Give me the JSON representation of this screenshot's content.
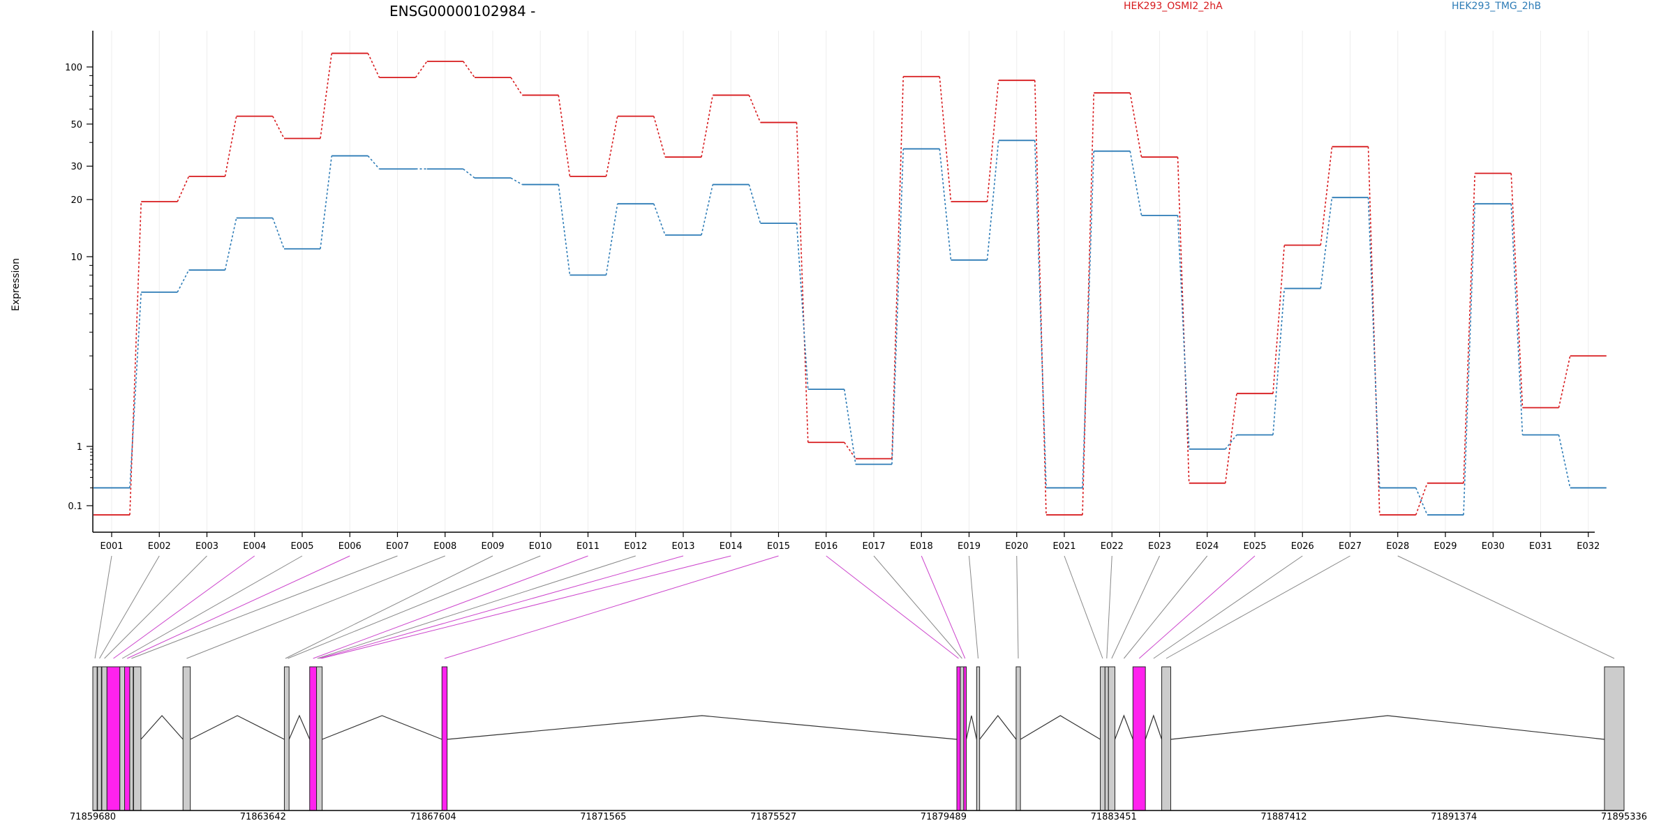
{
  "chart_data": {
    "type": "line",
    "title": "ENSG00000102984 -",
    "ylabel": "Expression",
    "yscale": "log",
    "yticks": [
      0.1,
      1,
      10,
      20,
      30,
      50,
      100
    ],
    "ytick_labels": [
      "0.1",
      "1",
      "10",
      "20",
      "30",
      "50",
      "100"
    ],
    "categories": [
      "E001",
      "E002",
      "E003",
      "E004",
      "E005",
      "E006",
      "E007",
      "E008",
      "E009",
      "E010",
      "E011",
      "E012",
      "E013",
      "E014",
      "E015",
      "E016",
      "E017",
      "E018",
      "E019",
      "E020",
      "E021",
      "E022",
      "E023",
      "E024",
      "E025",
      "E026",
      "E027",
      "E028",
      "E029",
      "E030",
      "E031",
      "E032"
    ],
    "series": [
      {
        "name": "HEK293_OSMI2_2hA",
        "color": "#d7191c",
        "values": [
          0.07,
          19.5,
          26.5,
          55,
          42,
          118,
          88,
          107,
          88,
          71,
          26.5,
          55,
          33.5,
          71,
          51,
          1.05,
          0.62,
          89,
          19.5,
          85,
          0.07,
          73,
          33.5,
          0.24,
          1.9,
          11.5,
          38,
          0.07,
          0.24,
          27.5,
          1.6,
          3.0
        ]
      },
      {
        "name": "HEK293_TMG_2hB",
        "color": "#2c7bb6",
        "values": [
          0.2,
          6.5,
          8.5,
          16,
          11,
          34,
          29,
          29,
          26,
          24,
          8,
          19,
          13,
          24,
          15,
          2.0,
          0.5,
          37,
          9.6,
          41,
          0.2,
          36,
          16.5,
          0.9,
          1.15,
          6.8,
          20.5,
          0.2,
          0.07,
          19,
          1.15,
          0.2
        ]
      }
    ],
    "grid": true,
    "legend_placement": "top",
    "gene_model": {
      "coordinate_ticks": [
        "71859680",
        "71863642",
        "71867604",
        "71871565",
        "71875527",
        "71879489",
        "71883451",
        "71887412",
        "71891374",
        "71895336"
      ],
      "range": [
        71859680,
        71895336
      ],
      "exons": [
        {
          "start": 71859680,
          "end": 71859780,
          "highlight": false
        },
        {
          "start": 71859790,
          "end": 71859880,
          "highlight": false
        },
        {
          "start": 71859890,
          "end": 71860010,
          "highlight": false
        },
        {
          "start": 71860010,
          "end": 71860310,
          "highlight": true
        },
        {
          "start": 71860310,
          "end": 71860420,
          "highlight": false
        },
        {
          "start": 71860420,
          "end": 71860540,
          "highlight": true
        },
        {
          "start": 71860540,
          "end": 71860620,
          "highlight": false
        },
        {
          "start": 71860630,
          "end": 71860800,
          "highlight": false
        },
        {
          "start": 71861780,
          "end": 71861950,
          "highlight": false
        },
        {
          "start": 71864140,
          "end": 71864250,
          "highlight": false
        },
        {
          "start": 71864730,
          "end": 71864890,
          "highlight": true
        },
        {
          "start": 71864890,
          "end": 71865020,
          "highlight": false
        },
        {
          "start": 71867810,
          "end": 71867930,
          "highlight": true
        },
        {
          "start": 71879800,
          "end": 71879880,
          "highlight": true
        },
        {
          "start": 71879880,
          "end": 71879960,
          "highlight": false
        },
        {
          "start": 71879960,
          "end": 71880020,
          "highlight": true
        },
        {
          "start": 71880260,
          "end": 71880330,
          "highlight": false
        },
        {
          "start": 71881180,
          "end": 71881280,
          "highlight": false
        },
        {
          "start": 71883140,
          "end": 71883250,
          "highlight": false
        },
        {
          "start": 71883250,
          "end": 71883330,
          "highlight": false
        },
        {
          "start": 71883330,
          "end": 71883480,
          "highlight": false
        },
        {
          "start": 71883900,
          "end": 71884190,
          "highlight": true
        },
        {
          "start": 71884570,
          "end": 71884780,
          "highlight": false
        },
        {
          "start": 71894880,
          "end": 71895336,
          "highlight": false
        }
      ],
      "connectors": [
        {
          "start": 71859680,
          "end": 71859780,
          "highlight": false
        },
        {
          "start": 71859790,
          "end": 71859880,
          "highlight": false
        },
        {
          "start": 71859890,
          "end": 71860010,
          "highlight": false
        },
        {
          "start": 71860010,
          "end": 71860310,
          "highlight": true
        },
        {
          "start": 71860310,
          "end": 71860420,
          "highlight": false
        },
        {
          "start": 71860420,
          "end": 71860540,
          "highlight": true
        },
        {
          "start": 71860540,
          "end": 71860620,
          "highlight": false
        },
        {
          "start": 71861780,
          "end": 71861950,
          "highlight": false
        },
        {
          "start": 71864140,
          "end": 71864190,
          "highlight": false
        },
        {
          "start": 71864190,
          "end": 71864250,
          "highlight": false
        },
        {
          "start": 71864730,
          "end": 71864890,
          "highlight": true
        },
        {
          "start": 71864890,
          "end": 71864930,
          "highlight": false
        },
        {
          "start": 71864930,
          "end": 71864980,
          "highlight": true
        },
        {
          "start": 71864980,
          "end": 71865020,
          "highlight": true
        },
        {
          "start": 71867810,
          "end": 71867930,
          "highlight": true
        },
        {
          "start": 71879800,
          "end": 71879880,
          "highlight": true
        },
        {
          "start": 71879880,
          "end": 71879960,
          "highlight": false
        },
        {
          "start": 71879960,
          "end": 71880020,
          "highlight": true
        },
        {
          "start": 71880260,
          "end": 71880330,
          "highlight": false
        },
        {
          "start": 71881180,
          "end": 71881280,
          "highlight": false
        },
        {
          "start": 71883140,
          "end": 71883250,
          "highlight": false
        },
        {
          "start": 71883250,
          "end": 71883330,
          "highlight": false
        },
        {
          "start": 71883330,
          "end": 71883480,
          "highlight": false
        },
        {
          "start": 71883480,
          "end": 71883900,
          "highlight": false
        },
        {
          "start": 71883900,
          "end": 71884190,
          "highlight": true
        },
        {
          "start": 71884190,
          "end": 71884570,
          "highlight": false
        },
        {
          "start": 71884570,
          "end": 71884780,
          "highlight": false
        },
        {
          "start": 71894880,
          "end": 71895336,
          "highlight": false
        }
      ]
    }
  }
}
